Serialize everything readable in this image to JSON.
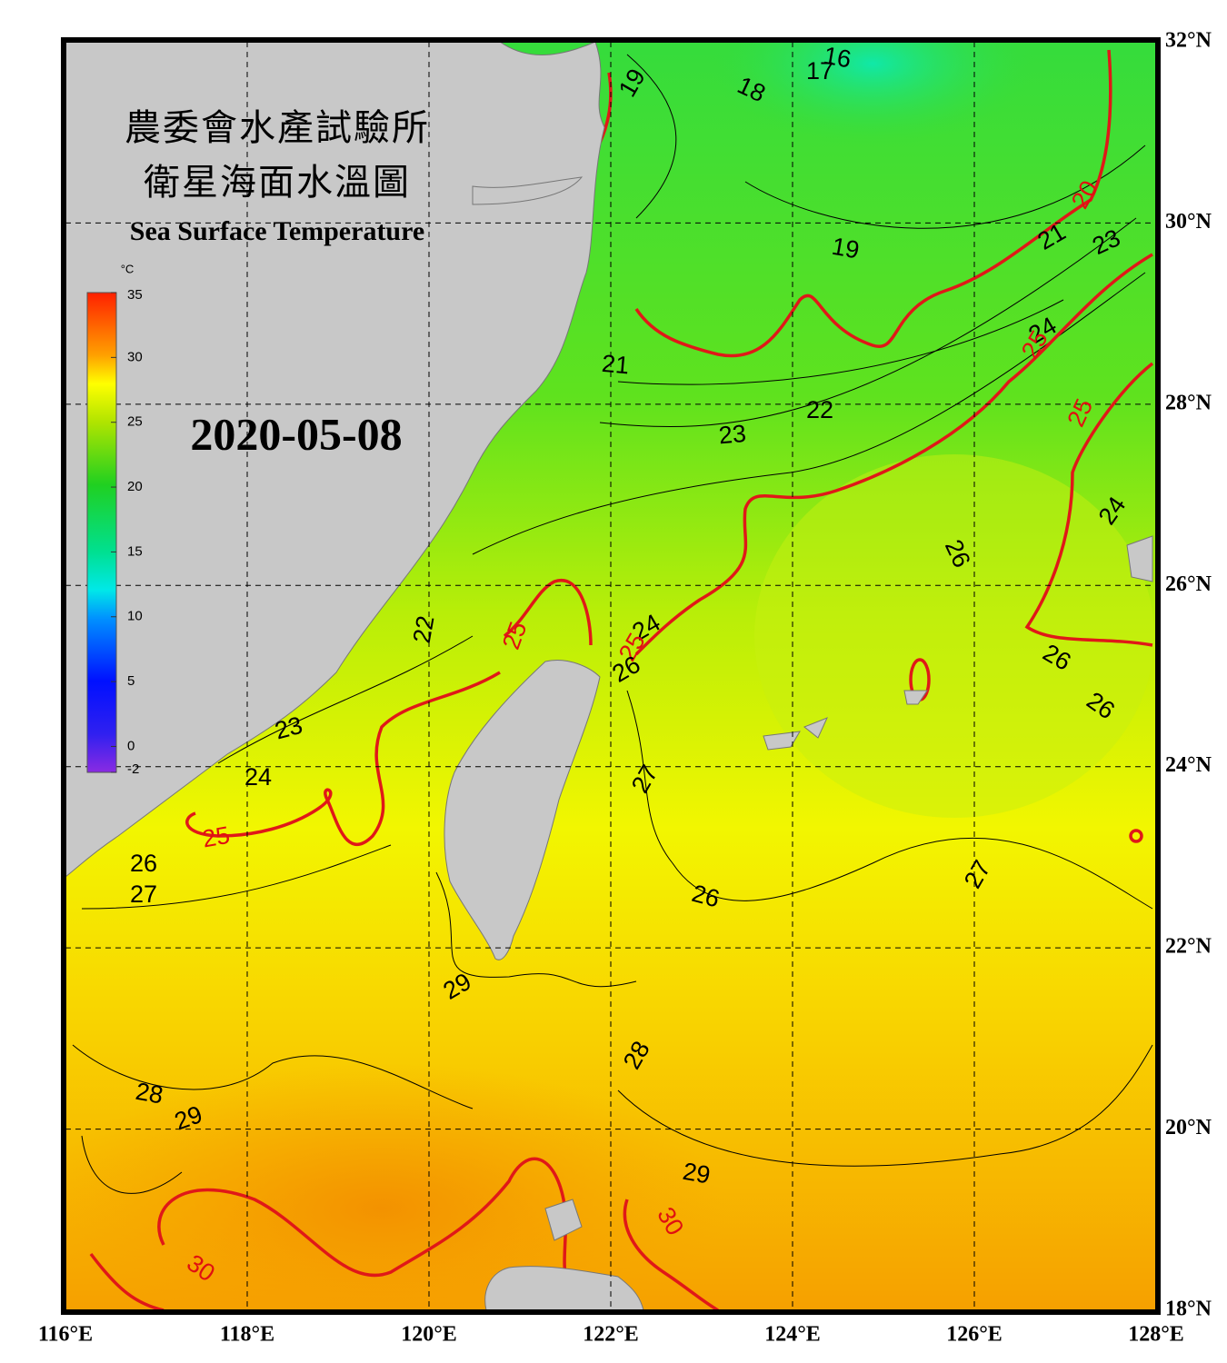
{
  "map": {
    "title_zh_1": "農委會水產試驗所",
    "title_zh_2": "衛星海面水溫圖",
    "title_en": "Sea Surface Temperature",
    "date": "2020-05-08",
    "xlim": [
      116,
      128
    ],
    "ylim": [
      18,
      32
    ],
    "xticks": [
      {
        "value": 116,
        "label": "116°E"
      },
      {
        "value": 118,
        "label": "118°E"
      },
      {
        "value": 120,
        "label": "120°E"
      },
      {
        "value": 122,
        "label": "122°E"
      },
      {
        "value": 124,
        "label": "124°E"
      },
      {
        "value": 126,
        "label": "126°E"
      },
      {
        "value": 128,
        "label": "128°E"
      }
    ],
    "yticks": [
      {
        "value": 18,
        "label": "18°N"
      },
      {
        "value": 20,
        "label": "20°N"
      },
      {
        "value": 22,
        "label": "22°N"
      },
      {
        "value": 24,
        "label": "24°N"
      },
      {
        "value": 26,
        "label": "26°N"
      },
      {
        "value": 28,
        "label": "28°N"
      },
      {
        "value": 30,
        "label": "30°N"
      },
      {
        "value": 32,
        "label": "32°N"
      }
    ],
    "colorbar": {
      "unit": "°C",
      "lim": [
        -2,
        35
      ],
      "ticks": [
        35,
        30,
        25,
        20,
        15,
        10,
        5,
        0,
        -2
      ]
    },
    "contour_labels": [
      {
        "value": 16,
        "color": "black"
      },
      {
        "value": 17,
        "color": "black"
      },
      {
        "value": 18,
        "color": "black"
      },
      {
        "value": 19,
        "color": "black"
      },
      {
        "value": 19,
        "color": "black"
      },
      {
        "value": 20,
        "color": "#e01010"
      },
      {
        "value": 21,
        "color": "black"
      },
      {
        "value": 21,
        "color": "black"
      },
      {
        "value": 23,
        "color": "black"
      },
      {
        "value": 22,
        "color": "black"
      },
      {
        "value": 23,
        "color": "black"
      },
      {
        "value": 24,
        "color": "black"
      },
      {
        "value": 25,
        "color": "#e01010"
      },
      {
        "value": 25,
        "color": "#e01010"
      },
      {
        "value": 24,
        "color": "black"
      },
      {
        "value": 26,
        "color": "black"
      },
      {
        "value": 22,
        "color": "black"
      },
      {
        "value": 25,
        "color": "#e01010"
      },
      {
        "value": 24,
        "color": "black"
      },
      {
        "value": 25,
        "color": "#e01010"
      },
      {
        "value": 26,
        "color": "black"
      },
      {
        "value": 26,
        "color": "black"
      },
      {
        "value": 26,
        "color": "black"
      },
      {
        "value": 23,
        "color": "black"
      },
      {
        "value": 24,
        "color": "black"
      },
      {
        "value": 27,
        "color": "black"
      },
      {
        "value": 25,
        "color": "#e01010"
      },
      {
        "value": 26,
        "color": "black"
      },
      {
        "value": 27,
        "color": "black"
      },
      {
        "value": 26,
        "color": "black"
      },
      {
        "value": 27,
        "color": "black"
      },
      {
        "value": 29,
        "color": "black"
      },
      {
        "value": 28,
        "color": "black"
      },
      {
        "value": 28,
        "color": "black"
      },
      {
        "value": 29,
        "color": "black"
      },
      {
        "value": 29,
        "color": "black"
      },
      {
        "value": 30,
        "color": "#e01010"
      },
      {
        "value": 30,
        "color": "#e01010"
      }
    ]
  }
}
